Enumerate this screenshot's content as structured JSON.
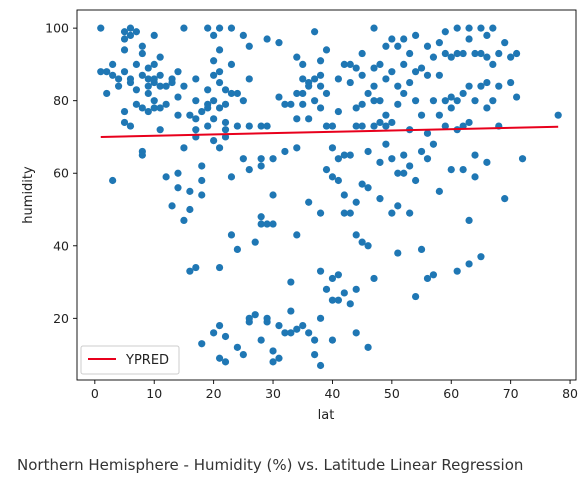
{
  "caption": "Northern Hemisphere - Humidity (%) vs. Latitude Linear Regression",
  "chart_data": {
    "type": "scatter",
    "title": "",
    "xlabel": "lat",
    "ylabel": "humidity",
    "xlim": [
      -3,
      81
    ],
    "ylim": [
      3,
      105
    ],
    "xticks": [
      0,
      10,
      20,
      30,
      40,
      50,
      60,
      70,
      80
    ],
    "yticks": [
      20,
      40,
      60,
      80,
      100
    ],
    "grid": false,
    "legend": {
      "placement": "lower-left",
      "entries": [
        {
          "label": "YPRED",
          "color": "#e8001c",
          "style": "line"
        }
      ]
    },
    "colors": {
      "points": "#1f77b4",
      "regression": "#e8001c"
    },
    "regression": {
      "name": "YPRED",
      "x": [
        1,
        78
      ],
      "y": [
        70,
        72.8
      ]
    },
    "series": [
      {
        "points": [
          [
            1,
            100
          ],
          [
            1,
            88
          ],
          [
            2,
            88
          ],
          [
            2,
            82
          ],
          [
            3,
            90
          ],
          [
            3,
            87
          ],
          [
            3,
            58
          ],
          [
            4,
            84
          ],
          [
            4,
            86
          ],
          [
            5,
            97
          ],
          [
            5,
            94
          ],
          [
            5,
            99
          ],
          [
            5,
            88
          ],
          [
            5,
            77
          ],
          [
            5,
            74
          ],
          [
            6,
            100
          ],
          [
            6,
            98
          ],
          [
            6,
            86
          ],
          [
            6,
            85
          ],
          [
            6,
            73
          ],
          [
            7,
            99
          ],
          [
            7,
            90
          ],
          [
            7,
            83
          ],
          [
            7,
            79
          ],
          [
            8,
            95
          ],
          [
            8,
            93
          ],
          [
            8,
            87
          ],
          [
            8,
            78
          ],
          [
            8,
            66
          ],
          [
            8,
            65
          ],
          [
            9,
            89
          ],
          [
            9,
            86
          ],
          [
            9,
            84
          ],
          [
            9,
            82
          ],
          [
            9,
            77
          ],
          [
            10,
            98
          ],
          [
            10,
            90
          ],
          [
            10,
            85
          ],
          [
            10,
            80
          ],
          [
            10,
            78
          ],
          [
            10,
            86
          ],
          [
            11,
            87
          ],
          [
            11,
            84
          ],
          [
            11,
            78
          ],
          [
            11,
            72
          ],
          [
            11,
            92
          ],
          [
            12,
            59
          ],
          [
            12,
            84
          ],
          [
            12,
            79
          ],
          [
            13,
            51
          ],
          [
            13,
            86
          ],
          [
            13,
            85
          ],
          [
            14,
            88
          ],
          [
            14,
            81
          ],
          [
            14,
            60
          ],
          [
            14,
            76
          ],
          [
            14,
            56
          ],
          [
            15,
            84
          ],
          [
            15,
            100
          ],
          [
            15,
            67
          ],
          [
            15,
            47
          ],
          [
            16,
            76
          ],
          [
            16,
            33
          ],
          [
            16,
            55
          ],
          [
            16,
            50
          ],
          [
            17,
            86
          ],
          [
            17,
            80
          ],
          [
            17,
            75
          ],
          [
            17,
            72
          ],
          [
            17,
            70
          ],
          [
            17,
            34
          ],
          [
            18,
            77
          ],
          [
            18,
            62
          ],
          [
            18,
            58
          ],
          [
            18,
            54
          ],
          [
            18,
            13
          ],
          [
            19,
            100
          ],
          [
            19,
            83
          ],
          [
            19,
            79
          ],
          [
            19,
            78
          ],
          [
            19,
            73
          ],
          [
            20,
            98
          ],
          [
            20,
            91
          ],
          [
            20,
            87
          ],
          [
            20,
            80
          ],
          [
            20,
            75
          ],
          [
            20,
            69
          ],
          [
            20,
            16
          ],
          [
            21,
            100
          ],
          [
            21,
            94
          ],
          [
            21,
            88
          ],
          [
            21,
            85
          ],
          [
            21,
            78
          ],
          [
            21,
            67
          ],
          [
            21,
            34
          ],
          [
            21,
            18
          ],
          [
            21,
            9
          ],
          [
            22,
            83
          ],
          [
            22,
            79
          ],
          [
            22,
            74
          ],
          [
            22,
            72
          ],
          [
            22,
            70
          ],
          [
            22,
            15
          ],
          [
            22,
            8
          ],
          [
            23,
            100
          ],
          [
            23,
            90
          ],
          [
            23,
            82
          ],
          [
            23,
            59
          ],
          [
            23,
            43
          ],
          [
            24,
            82
          ],
          [
            24,
            73
          ],
          [
            24,
            39
          ],
          [
            24,
            12
          ],
          [
            25,
            98
          ],
          [
            25,
            80
          ],
          [
            25,
            64
          ],
          [
            25,
            10
          ],
          [
            26,
            95
          ],
          [
            26,
            86
          ],
          [
            26,
            73
          ],
          [
            26,
            61
          ],
          [
            26,
            20
          ],
          [
            26,
            19
          ],
          [
            27,
            41
          ],
          [
            27,
            21
          ],
          [
            28,
            73
          ],
          [
            28,
            64
          ],
          [
            28,
            62
          ],
          [
            28,
            48
          ],
          [
            28,
            46
          ],
          [
            28,
            14
          ],
          [
            29,
            97
          ],
          [
            29,
            73
          ],
          [
            29,
            46
          ],
          [
            29,
            19
          ],
          [
            29,
            20
          ],
          [
            30,
            64
          ],
          [
            30,
            54
          ],
          [
            30,
            46
          ],
          [
            30,
            8
          ],
          [
            30,
            11
          ],
          [
            31,
            96
          ],
          [
            31,
            81
          ],
          [
            31,
            18
          ],
          [
            31,
            9
          ],
          [
            32,
            79
          ],
          [
            32,
            66
          ],
          [
            32,
            16
          ],
          [
            33,
            79
          ],
          [
            33,
            30
          ],
          [
            33,
            22
          ],
          [
            33,
            16
          ],
          [
            34,
            92
          ],
          [
            34,
            82
          ],
          [
            34,
            75
          ],
          [
            34,
            67
          ],
          [
            34,
            43
          ],
          [
            34,
            17
          ],
          [
            35,
            90
          ],
          [
            35,
            86
          ],
          [
            35,
            82
          ],
          [
            35,
            79
          ],
          [
            35,
            18
          ],
          [
            36,
            85
          ],
          [
            36,
            84
          ],
          [
            36,
            75
          ],
          [
            36,
            52
          ],
          [
            36,
            16
          ],
          [
            37,
            99
          ],
          [
            37,
            86
          ],
          [
            37,
            80
          ],
          [
            37,
            10
          ],
          [
            37,
            14
          ],
          [
            38,
            91
          ],
          [
            38,
            87
          ],
          [
            38,
            84
          ],
          [
            38,
            78
          ],
          [
            38,
            49
          ],
          [
            38,
            33
          ],
          [
            38,
            20
          ],
          [
            38,
            7
          ],
          [
            39,
            94
          ],
          [
            39,
            82
          ],
          [
            39,
            73
          ],
          [
            39,
            61
          ],
          [
            39,
            28
          ],
          [
            40,
            73
          ],
          [
            40,
            67
          ],
          [
            40,
            59
          ],
          [
            40,
            31
          ],
          [
            40,
            25
          ],
          [
            40,
            14
          ],
          [
            41,
            86
          ],
          [
            41,
            77
          ],
          [
            41,
            64
          ],
          [
            41,
            58
          ],
          [
            41,
            32
          ],
          [
            41,
            25
          ],
          [
            42,
            90
          ],
          [
            42,
            65
          ],
          [
            42,
            54
          ],
          [
            42,
            49
          ],
          [
            42,
            27
          ],
          [
            43,
            90
          ],
          [
            43,
            85
          ],
          [
            43,
            65
          ],
          [
            43,
            49
          ],
          [
            43,
            24
          ],
          [
            44,
            89
          ],
          [
            44,
            78
          ],
          [
            44,
            73
          ],
          [
            44,
            52
          ],
          [
            44,
            43
          ],
          [
            44,
            28
          ],
          [
            44,
            16
          ],
          [
            45,
            93
          ],
          [
            45,
            87
          ],
          [
            45,
            79
          ],
          [
            45,
            73
          ],
          [
            45,
            57
          ],
          [
            45,
            41
          ],
          [
            46,
            82
          ],
          [
            46,
            66
          ],
          [
            46,
            56
          ],
          [
            46,
            40
          ],
          [
            46,
            12
          ],
          [
            47,
            100
          ],
          [
            47,
            89
          ],
          [
            47,
            84
          ],
          [
            47,
            80
          ],
          [
            47,
            73
          ],
          [
            47,
            31
          ],
          [
            48,
            90
          ],
          [
            48,
            80
          ],
          [
            48,
            74
          ],
          [
            48,
            63
          ],
          [
            48,
            53
          ],
          [
            49,
            95
          ],
          [
            49,
            86
          ],
          [
            49,
            76
          ],
          [
            49,
            73
          ],
          [
            49,
            68
          ],
          [
            50,
            97
          ],
          [
            50,
            88
          ],
          [
            50,
            74
          ],
          [
            50,
            64
          ],
          [
            50,
            49
          ],
          [
            51,
            95
          ],
          [
            51,
            84
          ],
          [
            51,
            79
          ],
          [
            51,
            60
          ],
          [
            51,
            51
          ],
          [
            51,
            38
          ],
          [
            52,
            97
          ],
          [
            52,
            90
          ],
          [
            52,
            82
          ],
          [
            52,
            65
          ],
          [
            52,
            60
          ],
          [
            53,
            93
          ],
          [
            53,
            85
          ],
          [
            53,
            72
          ],
          [
            53,
            62
          ],
          [
            53,
            49
          ],
          [
            54,
            98
          ],
          [
            54,
            88
          ],
          [
            54,
            80
          ],
          [
            54,
            58
          ],
          [
            54,
            26
          ],
          [
            55,
            89
          ],
          [
            55,
            76
          ],
          [
            55,
            66
          ],
          [
            55,
            39
          ],
          [
            56,
            95
          ],
          [
            56,
            87
          ],
          [
            56,
            71
          ],
          [
            56,
            64
          ],
          [
            56,
            31
          ],
          [
            57,
            92
          ],
          [
            57,
            80
          ],
          [
            57,
            68
          ],
          [
            57,
            32
          ],
          [
            58,
            96
          ],
          [
            58,
            87
          ],
          [
            58,
            76
          ],
          [
            58,
            55
          ],
          [
            59,
            99
          ],
          [
            59,
            93
          ],
          [
            59,
            80
          ],
          [
            59,
            73
          ],
          [
            60,
            92
          ],
          [
            60,
            81
          ],
          [
            60,
            78
          ],
          [
            60,
            61
          ],
          [
            61,
            100
          ],
          [
            61,
            93
          ],
          [
            61,
            80
          ],
          [
            61,
            72
          ],
          [
            61,
            33
          ],
          [
            62,
            93
          ],
          [
            62,
            82
          ],
          [
            62,
            73
          ],
          [
            62,
            61
          ],
          [
            63,
            100
          ],
          [
            63,
            97
          ],
          [
            63,
            84
          ],
          [
            63,
            74
          ],
          [
            63,
            47
          ],
          [
            63,
            35
          ],
          [
            64,
            93
          ],
          [
            64,
            80
          ],
          [
            64,
            65
          ],
          [
            64,
            59
          ],
          [
            65,
            100
          ],
          [
            65,
            93
          ],
          [
            65,
            84
          ],
          [
            65,
            37
          ],
          [
            66,
            98
          ],
          [
            66,
            92
          ],
          [
            66,
            85
          ],
          [
            66,
            78
          ],
          [
            66,
            63
          ],
          [
            67,
            100
          ],
          [
            67,
            90
          ],
          [
            67,
            80
          ],
          [
            68,
            93
          ],
          [
            68,
            84
          ],
          [
            68,
            73
          ],
          [
            69,
            96
          ],
          [
            69,
            53
          ],
          [
            70,
            92
          ],
          [
            70,
            85
          ],
          [
            71,
            93
          ],
          [
            71,
            81
          ],
          [
            72,
            64
          ],
          [
            78,
            76
          ]
        ]
      }
    ]
  }
}
